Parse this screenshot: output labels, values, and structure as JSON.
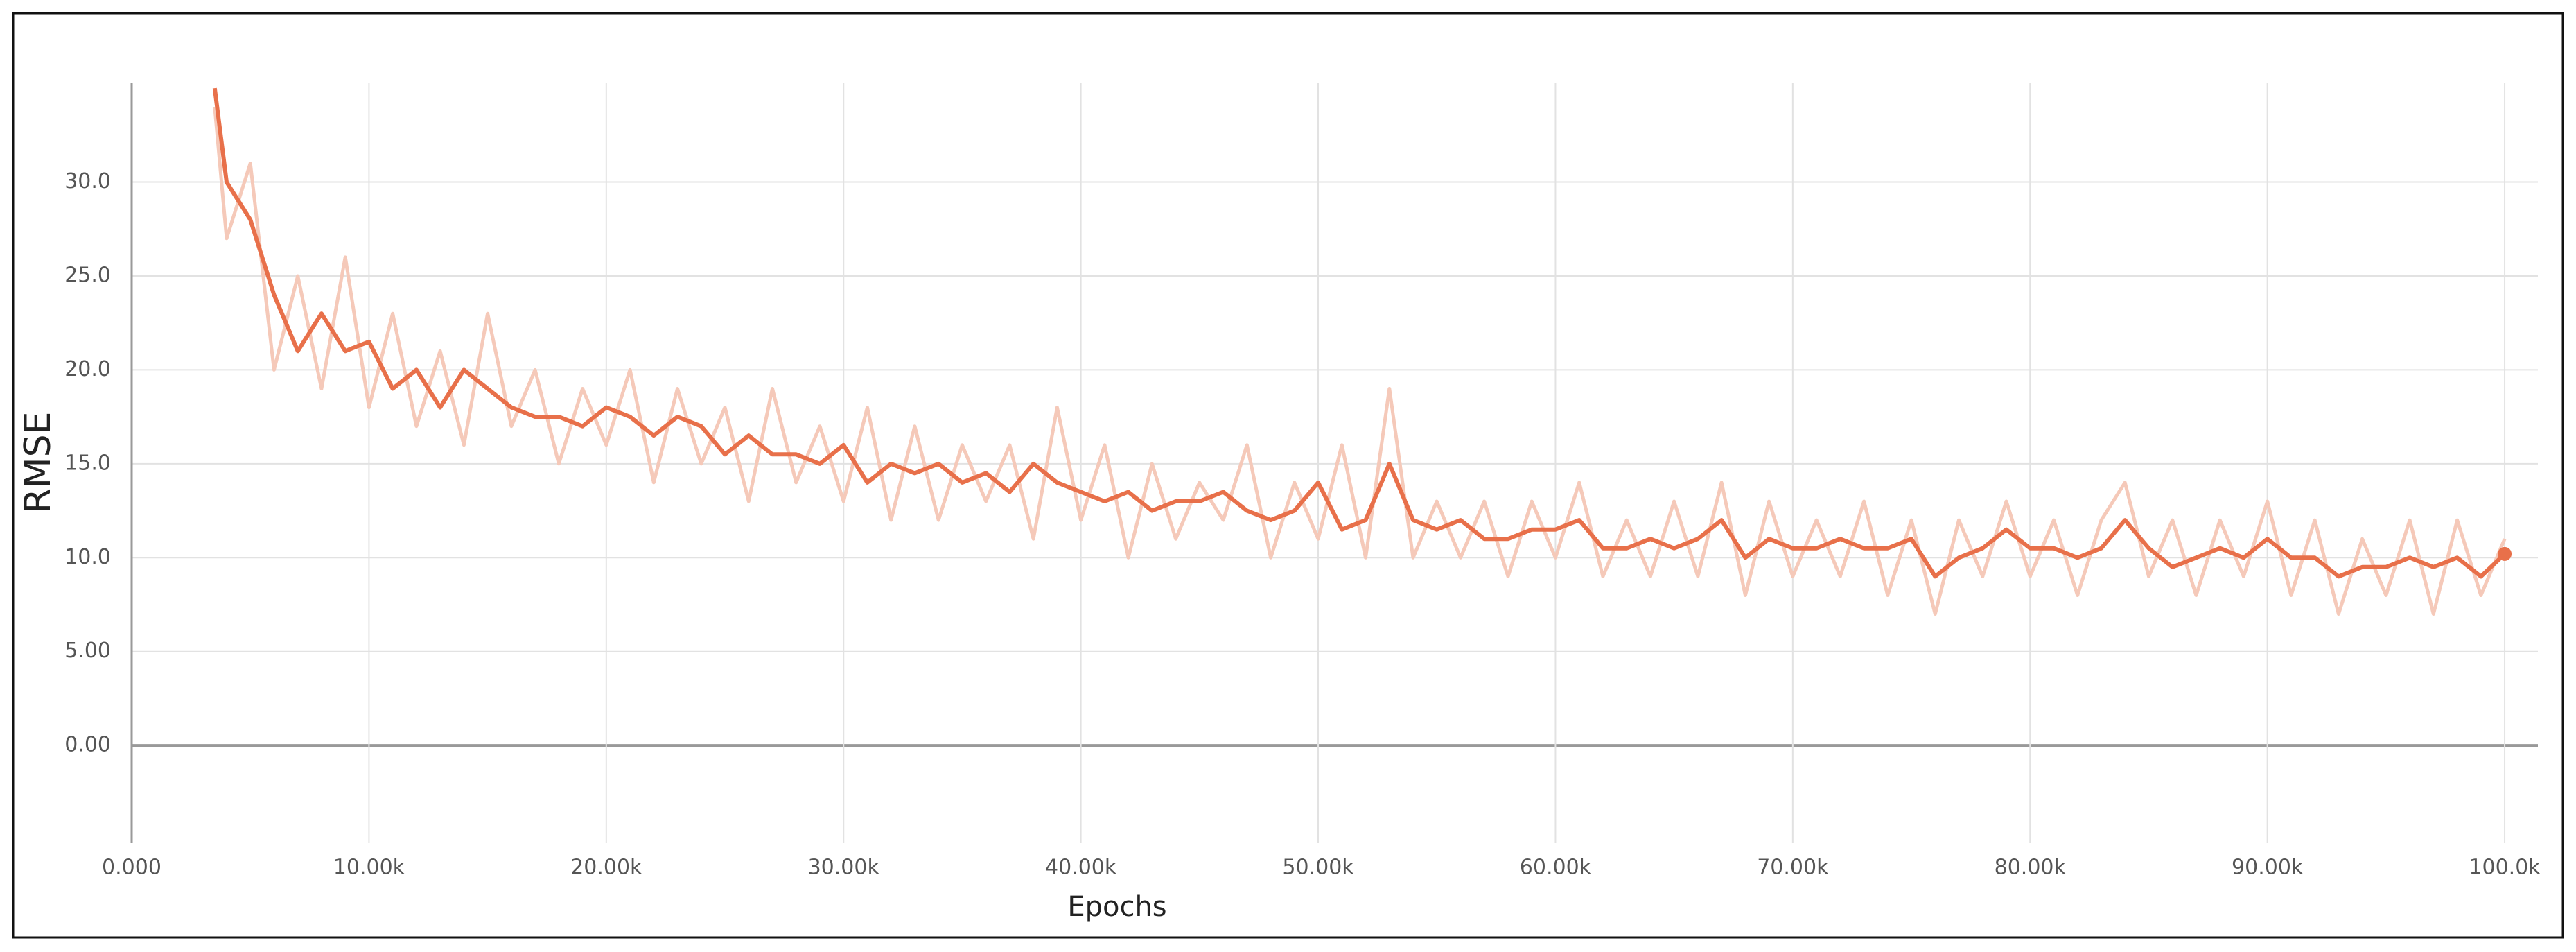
{
  "chart_data": {
    "type": "line",
    "x_label": "Epochs",
    "y_label": "RMSE",
    "x": [
      3500,
      4000,
      5000,
      6000,
      7000,
      8000,
      9000,
      10000,
      11000,
      12000,
      13000,
      14000,
      15000,
      16000,
      17000,
      18000,
      19000,
      20000,
      21000,
      22000,
      23000,
      24000,
      25000,
      26000,
      27000,
      28000,
      29000,
      30000,
      31000,
      32000,
      33000,
      34000,
      35000,
      36000,
      37000,
      38000,
      39000,
      40000,
      41000,
      42000,
      43000,
      44000,
      45000,
      46000,
      47000,
      48000,
      49000,
      50000,
      51000,
      52000,
      53000,
      54000,
      55000,
      56000,
      57000,
      58000,
      59000,
      60000,
      61000,
      62000,
      63000,
      64000,
      65000,
      66000,
      67000,
      68000,
      69000,
      70000,
      71000,
      72000,
      73000,
      74000,
      75000,
      76000,
      77000,
      78000,
      79000,
      80000,
      81000,
      82000,
      83000,
      84000,
      85000,
      86000,
      87000,
      88000,
      89000,
      90000,
      91000,
      92000,
      93000,
      94000,
      95000,
      96000,
      97000,
      98000,
      99000,
      100000
    ],
    "series": [
      {
        "color": "#f5c9b9",
        "values": [
          34,
          27,
          31,
          20,
          25,
          19,
          26,
          18,
          23,
          17,
          21,
          16,
          23,
          17,
          20,
          15,
          19,
          16,
          20,
          14,
          19,
          15,
          18,
          13,
          19,
          14,
          17,
          13,
          18,
          12,
          17,
          12,
          16,
          13,
          16,
          11,
          18,
          12,
          16,
          10,
          15,
          11,
          14,
          12,
          16,
          10,
          14,
          11,
          16,
          10,
          19,
          10,
          13,
          10,
          13,
          9,
          13,
          10,
          14,
          9,
          12,
          9,
          13,
          9,
          14,
          8,
          13,
          9,
          12,
          9,
          13,
          8,
          12,
          7,
          12,
          9,
          13,
          9,
          12,
          8,
          12,
          14,
          9,
          12,
          8,
          12,
          9,
          13,
          8,
          12,
          7,
          11,
          8,
          12,
          7,
          12,
          8,
          11
        ]
      },
      {
        "color": "#e8704a",
        "values": [
          35,
          30,
          28,
          24,
          21,
          23,
          21,
          21.5,
          19,
          20,
          18,
          20,
          19,
          18,
          17.5,
          17.5,
          17,
          18,
          17.5,
          16.5,
          17.5,
          17,
          15.5,
          16.5,
          15.5,
          15.5,
          15,
          16,
          14,
          15,
          14.5,
          15,
          14,
          14.5,
          13.5,
          15,
          14,
          13.5,
          13,
          13.5,
          12.5,
          13,
          13,
          13.5,
          12.5,
          12,
          12.5,
          14,
          11.5,
          12,
          15,
          12,
          11.5,
          12,
          11,
          11,
          11.5,
          11.5,
          12,
          10.5,
          10.5,
          11,
          10.5,
          11,
          12,
          10,
          11,
          10.5,
          10.5,
          11,
          10.5,
          10.5,
          11,
          9,
          10,
          10.5,
          11.5,
          10.5,
          10.5,
          10,
          10.5,
          12,
          10.5,
          9.5,
          10,
          10.5,
          10,
          11,
          10,
          10,
          9,
          9.5,
          9.5,
          10,
          9.5,
          10,
          9,
          10.2
        ]
      }
    ],
    "xlim": [
      0,
      101400
    ],
    "ylim": [
      -5.2,
      35.3
    ],
    "xticks": [
      {
        "value": 0,
        "label": "0.000"
      },
      {
        "value": 10000,
        "label": "10.00k"
      },
      {
        "value": 20000,
        "label": "20.00k"
      },
      {
        "value": 30000,
        "label": "30.00k"
      },
      {
        "value": 40000,
        "label": "40.00k"
      },
      {
        "value": 50000,
        "label": "50.00k"
      },
      {
        "value": 60000,
        "label": "60.00k"
      },
      {
        "value": 70000,
        "label": "70.00k"
      },
      {
        "value": 80000,
        "label": "80.00k"
      },
      {
        "value": 90000,
        "label": "90.00k"
      },
      {
        "value": 100000,
        "label": "100.0k"
      }
    ],
    "yticks": [
      {
        "value": 0,
        "label": "0.00"
      },
      {
        "value": 5,
        "label": "5.00"
      },
      {
        "value": 10,
        "label": "10.0"
      },
      {
        "value": 15,
        "label": "15.0"
      },
      {
        "value": 20,
        "label": "20.0"
      },
      {
        "value": 25,
        "label": "25.0"
      },
      {
        "value": 30,
        "label": "30.0"
      }
    ],
    "grid": true
  }
}
